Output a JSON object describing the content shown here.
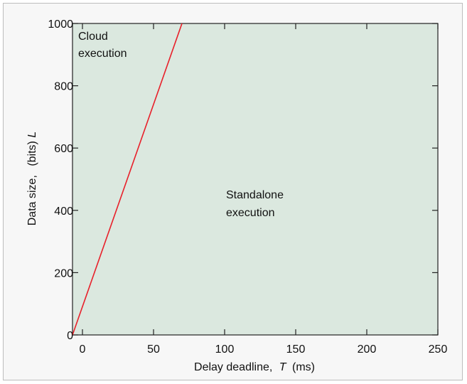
{
  "chart_data": {
    "type": "line",
    "xlabel_prefix": "Delay deadline,",
    "xlabel_var": "T",
    "xlabel_unit": "(ms)",
    "ylabel_prefix": "Data size,",
    "ylabel_unit": "(bits)",
    "ylabel_var": "L",
    "xlim": [
      -7,
      250
    ],
    "ylim": [
      0,
      1000
    ],
    "x_ticks": [
      0,
      50,
      100,
      150,
      200,
      250
    ],
    "x_tick_labels": [
      "0",
      "50",
      "100",
      "150",
      "200",
      "250"
    ],
    "y_ticks": [
      0,
      200,
      400,
      600,
      800,
      1000
    ],
    "y_tick_labels": [
      "0",
      "200",
      "400",
      "600",
      "800",
      "1000"
    ],
    "series": [
      {
        "x": [
          -7,
          70
        ],
        "y": [
          0,
          1000
        ],
        "color": "#e8202a"
      }
    ],
    "plot_bg": "#dbe8df",
    "annotations": {
      "cloud_line1": "Cloud",
      "cloud_line2": "execution",
      "standalone_line1": "Standalone",
      "standalone_line2": "execution"
    }
  }
}
